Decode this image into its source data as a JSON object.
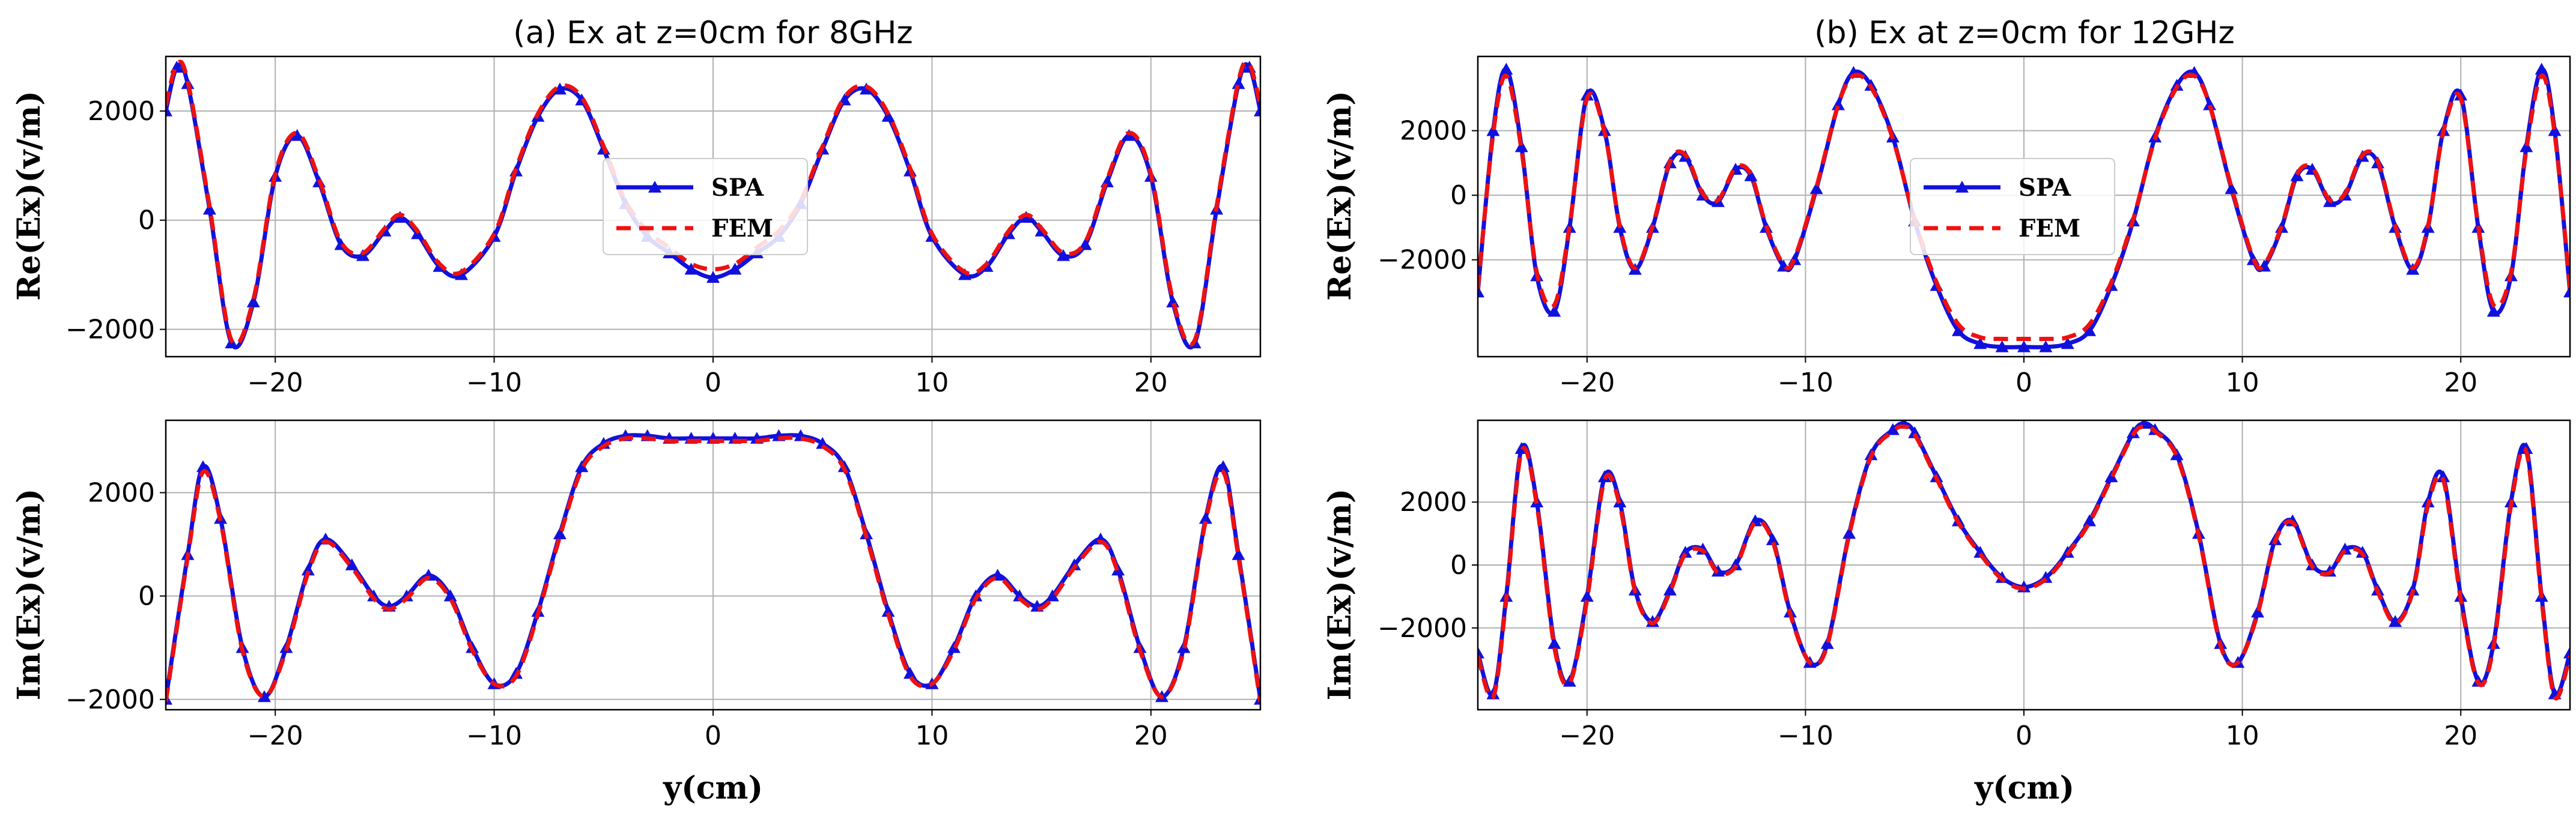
{
  "figure": {
    "xlabel": "y(cm)",
    "colors": {
      "SPA": "#1111dd",
      "FEM": "#ee1111",
      "grid": "#b0b0b0"
    }
  },
  "chart_data": [
    {
      "type": "line",
      "title": "(a) Ex at z=0cm for 8GHz",
      "xlabel": "",
      "ylabel": "Re(Ex)(v/m)",
      "xlim": [
        -25,
        25
      ],
      "ylim": [
        -2500,
        3000
      ],
      "xticks": [
        -20,
        -10,
        0,
        10,
        20
      ],
      "yticks": [
        -2000,
        0,
        2000
      ],
      "grid": true,
      "legend": "center",
      "series": [
        {
          "name": "SPA",
          "marker": "triangle",
          "x": [
            -25,
            -24.5,
            -24,
            -23,
            -22,
            -21,
            -20,
            -19,
            -18,
            -17,
            -16,
            -15,
            -14.3,
            -13.5,
            -12.5,
            -11.5,
            -10,
            -9,
            -8,
            -7,
            -6,
            -5,
            -4,
            -3,
            -2,
            -1,
            0,
            1,
            2,
            3,
            4,
            5,
            6,
            7,
            8,
            9,
            10,
            11.5,
            12.5,
            13.5,
            14.3,
            15,
            16,
            17,
            18,
            19,
            20,
            21,
            22,
            23,
            24,
            24.5,
            25
          ],
          "y": [
            2000,
            2800,
            2500,
            200,
            -2250,
            -1500,
            800,
            1550,
            700,
            -450,
            -650,
            -200,
            50,
            -250,
            -850,
            -1000,
            -300,
            900,
            1900,
            2400,
            2200,
            1300,
            300,
            -300,
            -600,
            -900,
            -1050,
            -900,
            -600,
            -300,
            300,
            1300,
            2200,
            2400,
            1900,
            900,
            -300,
            -1000,
            -850,
            -250,
            50,
            -200,
            -650,
            -450,
            700,
            1550,
            800,
            -1500,
            -2250,
            200,
            2500,
            2800,
            2000
          ]
        },
        {
          "name": "FEM",
          "marker": "none",
          "x": [
            -25,
            -24.5,
            -24,
            -23,
            -22,
            -21,
            -20,
            -19,
            -18,
            -17,
            -16,
            -15,
            -14.3,
            -13.5,
            -12.5,
            -11.5,
            -10,
            -9,
            -8,
            -7,
            -6,
            -5,
            -4,
            -3,
            -2,
            -1,
            0,
            1,
            2,
            3,
            4,
            5,
            6,
            7,
            8,
            9,
            10,
            11.5,
            12.5,
            13.5,
            14.3,
            15,
            16,
            17,
            18,
            19,
            20,
            21,
            22,
            23,
            24,
            24.5,
            25
          ],
          "y": [
            2100,
            2850,
            2550,
            250,
            -2200,
            -1450,
            850,
            1600,
            750,
            -400,
            -600,
            -150,
            100,
            -200,
            -800,
            -950,
            -250,
            950,
            1950,
            2450,
            2250,
            1350,
            350,
            -200,
            -500,
            -800,
            -900,
            -800,
            -500,
            -200,
            350,
            1350,
            2250,
            2450,
            1950,
            950,
            -250,
            -950,
            -800,
            -200,
            100,
            -150,
            -600,
            -400,
            750,
            1600,
            850,
            -1450,
            -2200,
            250,
            2550,
            2850,
            2100
          ]
        }
      ]
    },
    {
      "type": "line",
      "title": "",
      "xlabel": "y(cm)",
      "ylabel": "Im(Ex)(v/m)",
      "xlim": [
        -25,
        25
      ],
      "ylim": [
        -2200,
        3400
      ],
      "xticks": [
        -20,
        -10,
        0,
        10,
        20
      ],
      "yticks": [
        -2000,
        0,
        2000
      ],
      "grid": true,
      "legend": "none",
      "series": [
        {
          "name": "SPA",
          "marker": "triangle",
          "x": [
            -25,
            -24,
            -23.3,
            -22.5,
            -21.5,
            -20.5,
            -19.5,
            -18.5,
            -17.7,
            -16.5,
            -15.5,
            -14.8,
            -14,
            -13,
            -12,
            -11,
            -10,
            -9,
            -8,
            -7,
            -6,
            -5,
            -4,
            -3,
            -2,
            -1,
            0,
            1,
            2,
            3,
            4,
            5,
            6,
            7,
            8,
            9,
            10,
            11,
            12,
            13,
            14,
            14.8,
            15.5,
            16.5,
            17.7,
            18.5,
            19.5,
            20.5,
            21.5,
            22.5,
            23.3,
            24,
            25
          ],
          "y": [
            -2000,
            800,
            2500,
            1500,
            -1000,
            -1950,
            -1000,
            500,
            1100,
            600,
            0,
            -200,
            0,
            400,
            0,
            -1000,
            -1700,
            -1500,
            -300,
            1200,
            2500,
            2950,
            3100,
            3100,
            3050,
            3050,
            3050,
            3050,
            3050,
            3100,
            3100,
            2950,
            2500,
            1200,
            -300,
            -1500,
            -1700,
            -1000,
            0,
            400,
            0,
            -200,
            0,
            600,
            1100,
            500,
            -1000,
            -1950,
            -1000,
            1500,
            2500,
            800,
            -2000
          ]
        },
        {
          "name": "FEM",
          "marker": "none",
          "x": [
            -25,
            -24,
            -23.3,
            -22.5,
            -21.5,
            -20.5,
            -19.5,
            -18.5,
            -17.7,
            -16.5,
            -15.5,
            -14.8,
            -14,
            -13,
            -12,
            -11,
            -10,
            -9,
            -8,
            -7,
            -6,
            -5,
            -4,
            -3,
            -2,
            -1,
            0,
            1,
            2,
            3,
            4,
            5,
            6,
            7,
            8,
            9,
            10,
            11,
            12,
            13,
            14,
            14.8,
            15.5,
            16.5,
            17.7,
            18.5,
            19.5,
            20.5,
            21.5,
            22.5,
            23.3,
            24,
            25
          ],
          "y": [
            -2050,
            750,
            2400,
            1450,
            -1050,
            -1950,
            -1050,
            450,
            1050,
            550,
            -50,
            -250,
            -50,
            350,
            -50,
            -1050,
            -1700,
            -1550,
            -350,
            1150,
            2450,
            2900,
            3050,
            3050,
            3000,
            3000,
            3000,
            3000,
            3000,
            3050,
            3050,
            2900,
            2450,
            1150,
            -350,
            -1550,
            -1700,
            -1050,
            -50,
            350,
            -50,
            -250,
            -50,
            550,
            1050,
            450,
            -1050,
            -1950,
            -1050,
            1450,
            2400,
            750,
            -2050
          ]
        }
      ]
    },
    {
      "type": "line",
      "title": "(b) Ex at z=0cm for 12GHz",
      "xlabel": "",
      "ylabel": "Re(Ex)(v/m)",
      "xlim": [
        -25,
        25
      ],
      "ylim": [
        -5000,
        4300
      ],
      "xticks": [
        -20,
        -10,
        0,
        10,
        20
      ],
      "yticks": [
        -2000,
        0,
        2000
      ],
      "grid": true,
      "legend": "center",
      "series": [
        {
          "name": "SPA",
          "marker": "triangle",
          "x": [
            -25,
            -24.3,
            -23.7,
            -23,
            -22.3,
            -21.5,
            -20.8,
            -20,
            -19.2,
            -18.5,
            -17.8,
            -17,
            -16.2,
            -15.5,
            -14.7,
            -14,
            -13.2,
            -12.5,
            -11.8,
            -11,
            -10.5,
            -9.5,
            -8.5,
            -7.8,
            -7,
            -6,
            -5,
            -4,
            -3,
            -2,
            -1,
            0,
            1,
            2,
            3,
            4,
            5,
            6,
            7,
            7.8,
            8.5,
            9.5,
            10.5,
            11,
            11.8,
            12.5,
            13.2,
            14,
            14.7,
            15.5,
            16.2,
            17,
            17.8,
            18.5,
            19.2,
            20,
            20.8,
            21.5,
            22.3,
            23,
            23.7,
            24.3,
            25
          ],
          "y": [
            -3000,
            2000,
            3900,
            1500,
            -2500,
            -3600,
            -1000,
            3100,
            2000,
            -1000,
            -2300,
            -1000,
            1000,
            1200,
            0,
            -200,
            800,
            600,
            -1000,
            -2200,
            -2000,
            200,
            2800,
            3800,
            3400,
            1800,
            -800,
            -2800,
            -4200,
            -4600,
            -4700,
            -4700,
            -4700,
            -4600,
            -4200,
            -2800,
            -800,
            1800,
            3400,
            3800,
            2800,
            200,
            -2000,
            -2200,
            -1000,
            600,
            800,
            -200,
            0,
            1200,
            1000,
            -1000,
            -2300,
            -1000,
            2000,
            3100,
            -1000,
            -3600,
            -2500,
            1500,
            3900,
            2000,
            -3000
          ]
        },
        {
          "name": "FEM",
          "marker": "none",
          "x": [
            -25,
            -24.3,
            -23.7,
            -23,
            -22.3,
            -21.5,
            -20.8,
            -20,
            -19.2,
            -18.5,
            -17.8,
            -17,
            -16.2,
            -15.5,
            -14.7,
            -14,
            -13.2,
            -12.5,
            -11.8,
            -11,
            -10.5,
            -9.5,
            -8.5,
            -7.8,
            -7,
            -6,
            -5,
            -4,
            -3,
            -2,
            -1,
            0,
            1,
            2,
            3,
            4,
            5,
            6,
            7,
            7.8,
            8.5,
            9.5,
            10.5,
            11,
            11.8,
            12.5,
            13.2,
            14,
            14.7,
            15.5,
            16.2,
            17,
            17.8,
            18.5,
            19.2,
            20,
            20.8,
            21.5,
            22.3,
            23,
            23.7,
            24.3,
            25
          ],
          "y": [
            -2900,
            1900,
            3700,
            1400,
            -2400,
            -3400,
            -950,
            3000,
            1950,
            -950,
            -2250,
            -950,
            1050,
            1250,
            50,
            -150,
            850,
            650,
            -950,
            -2150,
            -1950,
            250,
            2800,
            3700,
            3350,
            1750,
            -750,
            -2700,
            -4000,
            -4400,
            -4450,
            -4450,
            -4450,
            -4400,
            -4000,
            -2700,
            -750,
            1750,
            3350,
            3700,
            2800,
            250,
            -1950,
            -2150,
            -950,
            650,
            850,
            -150,
            50,
            1250,
            1050,
            -950,
            -2250,
            -950,
            1950,
            3000,
            -950,
            -3400,
            -2400,
            1400,
            3700,
            1900,
            -2900
          ]
        }
      ]
    },
    {
      "type": "line",
      "title": "",
      "xlabel": "y(cm)",
      "ylabel": "Im(Ex)(v/m)",
      "xlim": [
        -25,
        25
      ],
      "ylim": [
        -4600,
        4600
      ],
      "xticks": [
        -20,
        -10,
        0,
        10,
        20
      ],
      "yticks": [
        -2000,
        0,
        2000
      ],
      "grid": true,
      "legend": "none",
      "series": [
        {
          "name": "SPA",
          "marker": "triangle",
          "x": [
            -25,
            -24.3,
            -23.7,
            -23,
            -22.3,
            -21.5,
            -20.8,
            -20,
            -19.2,
            -18.5,
            -17.8,
            -17,
            -16.2,
            -15.5,
            -14.7,
            -14,
            -13.2,
            -12.3,
            -11.5,
            -10.7,
            -9.8,
            -9,
            -8,
            -7,
            -6,
            -5.5,
            -5,
            -4,
            -3,
            -2,
            -1,
            0,
            1,
            2,
            3,
            4,
            5,
            5.5,
            6,
            7,
            8,
            9,
            9.8,
            10.7,
            11.5,
            12.3,
            13.2,
            14,
            14.7,
            15.5,
            16.2,
            17,
            17.8,
            18.5,
            19.2,
            20,
            20.8,
            21.5,
            22.3,
            23,
            23.7,
            24.3,
            25
          ],
          "y": [
            -2800,
            -4100,
            -1000,
            3700,
            2000,
            -2500,
            -3700,
            -1000,
            2800,
            2000,
            -800,
            -1800,
            -800,
            400,
            500,
            -200,
            0,
            1400,
            800,
            -1500,
            -3100,
            -2500,
            1000,
            3500,
            4300,
            4500,
            4200,
            2800,
            1400,
            400,
            -400,
            -700,
            -400,
            400,
            1400,
            2800,
            4200,
            4500,
            4300,
            3500,
            1000,
            -2500,
            -3100,
            -1500,
            800,
            1400,
            0,
            -200,
            500,
            400,
            -800,
            -1800,
            -800,
            2000,
            2800,
            -1000,
            -3700,
            -2500,
            2000,
            3700,
            -1000,
            -4100,
            -2800
          ]
        },
        {
          "name": "FEM",
          "marker": "none",
          "x": [
            -25,
            -24.3,
            -23.7,
            -23,
            -22.3,
            -21.5,
            -20.8,
            -20,
            -19.2,
            -18.5,
            -17.8,
            -17,
            -16.2,
            -15.5,
            -14.7,
            -14,
            -13.2,
            -12.3,
            -11.5,
            -10.7,
            -9.8,
            -9,
            -8,
            -7,
            -6,
            -5.5,
            -5,
            -4,
            -3,
            -2,
            -1,
            0,
            1,
            2,
            3,
            4,
            5,
            5.5,
            6,
            7,
            8,
            9,
            9.8,
            10.7,
            11.5,
            12.3,
            13.2,
            14,
            14.7,
            15.5,
            16.2,
            17,
            17.8,
            18.5,
            19.2,
            20,
            20.8,
            21.5,
            22.3,
            23,
            23.7,
            24.3,
            25
          ],
          "y": [
            -2900,
            -4200,
            -1100,
            3600,
            1900,
            -2600,
            -3750,
            -1100,
            2700,
            1900,
            -850,
            -1850,
            -850,
            350,
            450,
            -250,
            -50,
            1350,
            750,
            -1550,
            -3100,
            -2550,
            950,
            3450,
            4250,
            4400,
            4150,
            2750,
            1350,
            350,
            -450,
            -750,
            -450,
            350,
            1350,
            2750,
            4150,
            4400,
            4250,
            3450,
            950,
            -2550,
            -3100,
            -1550,
            750,
            1350,
            -50,
            -250,
            450,
            350,
            -850,
            -1850,
            -850,
            1900,
            2700,
            -1100,
            -3750,
            -2600,
            1900,
            3600,
            -1100,
            -4200,
            -2900
          ]
        }
      ]
    }
  ]
}
